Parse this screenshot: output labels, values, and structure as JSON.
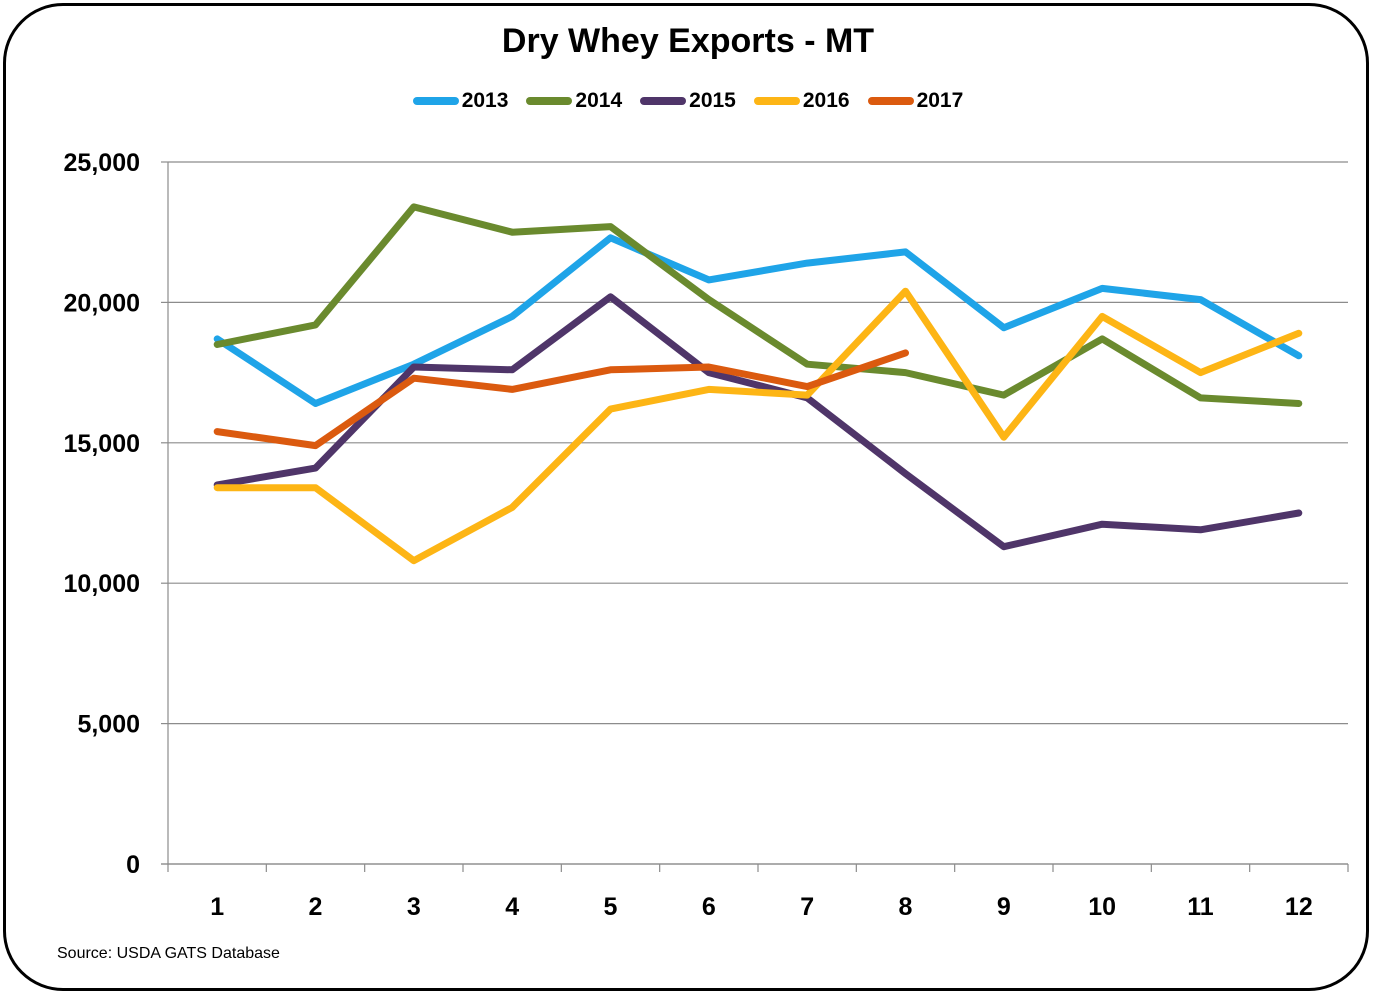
{
  "chart_data": {
    "type": "line",
    "title": "Dry Whey Exports - MT",
    "xlabel": "",
    "ylabel": "",
    "categories": [
      "1",
      "2",
      "3",
      "4",
      "5",
      "6",
      "7",
      "8",
      "9",
      "10",
      "11",
      "12"
    ],
    "ylim": [
      0,
      25000
    ],
    "yticks": [
      0,
      5000,
      10000,
      15000,
      20000,
      25000
    ],
    "ytick_labels": [
      "0",
      "5,000",
      "10,000",
      "15,000",
      "20,000",
      "25,000"
    ],
    "grid": true,
    "legend_position": "top",
    "series": [
      {
        "name": "2013",
        "color": "#1FA4E8",
        "values": [
          18700,
          16400,
          17800,
          19500,
          22300,
          20800,
          21400,
          21800,
          19100,
          20500,
          20100,
          18100
        ]
      },
      {
        "name": "2014",
        "color": "#6A8A2E",
        "values": [
          18500,
          19200,
          23400,
          22500,
          22700,
          20100,
          17800,
          17500,
          16700,
          18700,
          16600,
          16400
        ]
      },
      {
        "name": "2015",
        "color": "#4F3569",
        "values": [
          13500,
          14100,
          17700,
          17600,
          20200,
          17500,
          16600,
          13900,
          11300,
          12100,
          11900,
          12500
        ]
      },
      {
        "name": "2016",
        "color": "#FDB515",
        "values": [
          13400,
          13400,
          10800,
          12700,
          16200,
          16900,
          16700,
          20400,
          15200,
          19500,
          17500,
          18900
        ]
      },
      {
        "name": "2017",
        "color": "#DB5A0F",
        "values": [
          15400,
          14900,
          17300,
          16900,
          17600,
          17700,
          17000,
          18200,
          null,
          null,
          null,
          null
        ]
      }
    ]
  },
  "footer": {
    "source": "Source: USDA GATS Database"
  }
}
